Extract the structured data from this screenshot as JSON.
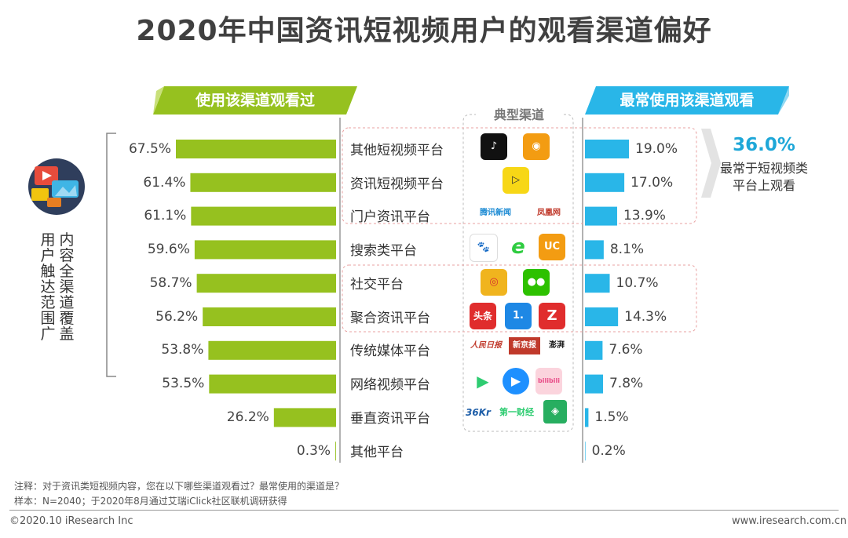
{
  "title": "2020年中国资讯短视频用户的观看渠道偏好",
  "banners": {
    "left": "使用该渠道观看过",
    "right": "最常使用该渠道观看",
    "middle": "典型渠道"
  },
  "side_labels": {
    "col1": "用户触达范围广",
    "col2": "内容全渠道覆盖"
  },
  "highlight": {
    "value": "36.0%",
    "line1": "最常于短视频类",
    "line2": "平台上观看"
  },
  "notes": {
    "line1": "注释：对于资讯类短视频内容，您在以下哪些渠道观看过？最常使用的渠道是？",
    "line2": "样本：N=2040；于2020年8月通过艾瑞iClick社区联机调研获得"
  },
  "footer": {
    "left": "©2020.10 iResearch Inc",
    "right": "www.iresearch.com.cn"
  },
  "logos": {
    "r0a": "♪",
    "r0b": "◉",
    "r1a": "▷",
    "r2a": "腾讯新闻",
    "r2b": "凤凰网",
    "r3a": "🐾",
    "r3b": "e",
    "r3c": "UC",
    "r4a": "◎",
    "r4b": "●●",
    "r5a": "头条",
    "r5b": "1.",
    "r5c": "Z",
    "r6a": "人民日报",
    "r6b": "新京报",
    "r6c": "澎湃",
    "r7a": "▶",
    "r7b": "▶",
    "r7c": "bilibili",
    "r8a": "36Kr",
    "r8b": "第一财经",
    "r8c": "◈"
  },
  "colors": {
    "left_bar": "#96c11f",
    "right_bar": "#29b6e8",
    "highlight": "#1ea7d8",
    "dash_box": "#e8a0a0"
  },
  "chart_data": {
    "type": "bar",
    "categories": [
      "其他短视频平台",
      "资讯短视频平台",
      "门户资讯平台",
      "搜索类平台",
      "社交平台",
      "聚合资讯平台",
      "传统媒体平台",
      "网络视频平台",
      "垂直资讯平台",
      "其他平台"
    ],
    "series": [
      {
        "name": "使用该渠道观看过",
        "values": [
          67.5,
          61.4,
          61.1,
          59.6,
          58.7,
          56.2,
          53.8,
          53.5,
          26.2,
          0.3
        ],
        "labels": [
          "67.5%",
          "61.4%",
          "61.1%",
          "59.6%",
          "58.7%",
          "56.2%",
          "53.8%",
          "53.5%",
          "26.2%",
          "0.3%"
        ]
      },
      {
        "name": "最常使用该渠道观看",
        "values": [
          19.0,
          17.0,
          13.9,
          8.1,
          10.7,
          14.3,
          7.6,
          7.8,
          1.5,
          0.2
        ],
        "labels": [
          "19.0%",
          "17.0%",
          "13.9%",
          "8.1%",
          "10.7%",
          "14.3%",
          "7.6%",
          "7.8%",
          "1.5%",
          "0.2%"
        ]
      }
    ]
  }
}
